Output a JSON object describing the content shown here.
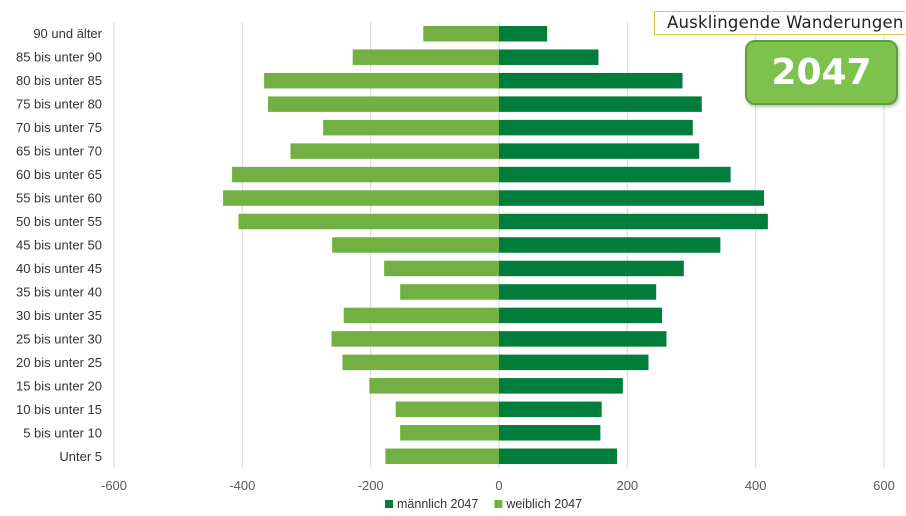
{
  "scenario_label": "Ausklingende Wanderungen",
  "year_badge": "2047",
  "chart_data": {
    "type": "bar",
    "orientation": "horizontal",
    "categories": [
      "90 und älter",
      "85 bis unter 90",
      "80 bis unter 85",
      "75 bis unter 80",
      "70 bis unter 75",
      "65 bis unter 70",
      "60 bis unter 65",
      "55 bis unter 60",
      "50 bis unter 55",
      "45 bis unter 50",
      "40 bis unter 45",
      "35 bis unter 40",
      "30 bis unter 35",
      "25 bis unter 30",
      "20 bis unter 25",
      "15 bis unter 20",
      "10 bis unter 15",
      "5 bis unter 10",
      "Unter 5"
    ],
    "series": [
      {
        "name": "männlich 2047",
        "color": "#007d3a",
        "values": [
          75,
          155,
          286,
          316,
          302,
          312,
          361,
          413,
          419,
          345,
          288,
          245,
          254,
          261,
          233,
          193,
          160,
          158,
          184
        ]
      },
      {
        "name": "weiblich 2047",
        "color": "#72b043",
        "values": [
          -118,
          -228,
          -366,
          -360,
          -274,
          -325,
          -416,
          -430,
          -406,
          -260,
          -179,
          -154,
          -242,
          -261,
          -244,
          -202,
          -161,
          -154,
          -177
        ]
      }
    ],
    "xlim": [
      -600,
      600
    ],
    "xticks": [
      -600,
      -400,
      -200,
      0,
      200,
      400,
      600
    ],
    "xtick_labels": [
      "-600",
      "-400",
      "-200",
      "0",
      "200",
      "400",
      "600"
    ],
    "grid": "vertical",
    "legend_position": "bottom"
  }
}
